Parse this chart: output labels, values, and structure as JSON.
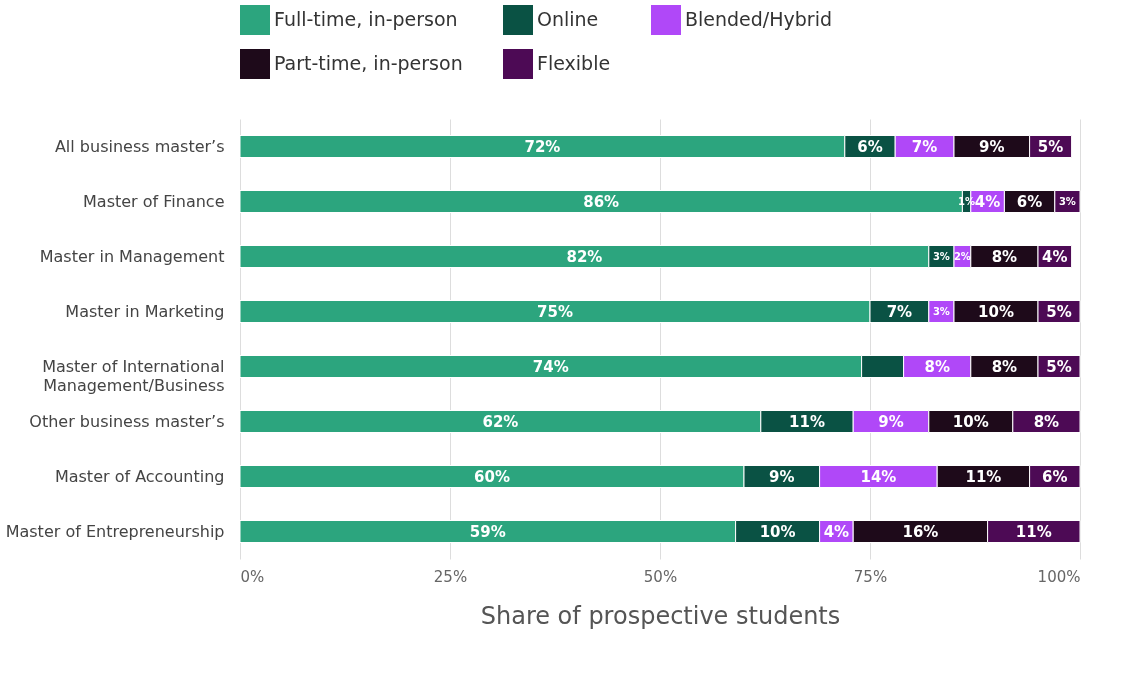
{
  "chart_data": {
    "type": "bar",
    "orientation": "horizontal",
    "stacked": true,
    "xlabel": "Share of prospective students",
    "categories": [
      "All business master’s",
      "Master of Finance",
      "Master in Management",
      "Master in Marketing",
      "Master of International\nManagement/Business",
      "Other business master’s",
      "Master of Accounting",
      "Master of Entrepreneurship"
    ],
    "series": [
      {
        "name": "Full-time, in-person",
        "color": "#2ca57e",
        "values": [
          72,
          86,
          82,
          75,
          74,
          62,
          60,
          59
        ],
        "value_labels": [
          "72%",
          "86%",
          "82%",
          "75%",
          "74%",
          "62%",
          "60%",
          "59%"
        ]
      },
      {
        "name": "Online",
        "color": "#0a5244",
        "values": [
          6,
          1,
          3,
          7,
          5,
          11,
          9,
          10
        ],
        "value_labels": [
          "6%",
          "1%",
          "3%",
          "7%",
          null,
          "11%",
          "9%",
          "10%"
        ]
      },
      {
        "name": "Blended/Hybrid",
        "color": "#b048f8",
        "values": [
          7,
          4,
          2,
          3,
          8,
          9,
          14,
          4
        ],
        "value_labels": [
          "7%",
          "4%",
          "2%",
          "3%",
          "8%",
          "9%",
          "14%",
          "4%"
        ]
      },
      {
        "name": "Part-time, in-person",
        "color": "#1e0a1a",
        "values": [
          9,
          6,
          8,
          10,
          8,
          10,
          11,
          16
        ],
        "value_labels": [
          "9%",
          "6%",
          "8%",
          "10%",
          "8%",
          "10%",
          "11%",
          "16%"
        ]
      },
      {
        "name": "Flexible",
        "color": "#4d0a55",
        "values": [
          5,
          3,
          4,
          5,
          5,
          8,
          6,
          11
        ],
        "value_labels": [
          "5%",
          "3%",
          "4%",
          "5%",
          "5%",
          "8%",
          "6%",
          "11%"
        ]
      }
    ],
    "xlim": [
      0,
      100
    ],
    "xticks": [
      {
        "value": 0,
        "label": "0%"
      },
      {
        "value": 25,
        "label": "25%"
      },
      {
        "value": 50,
        "label": "50%"
      },
      {
        "value": 75,
        "label": "75%"
      },
      {
        "value": 100,
        "label": "100%"
      }
    ],
    "grid": "x",
    "legend": "top"
  }
}
